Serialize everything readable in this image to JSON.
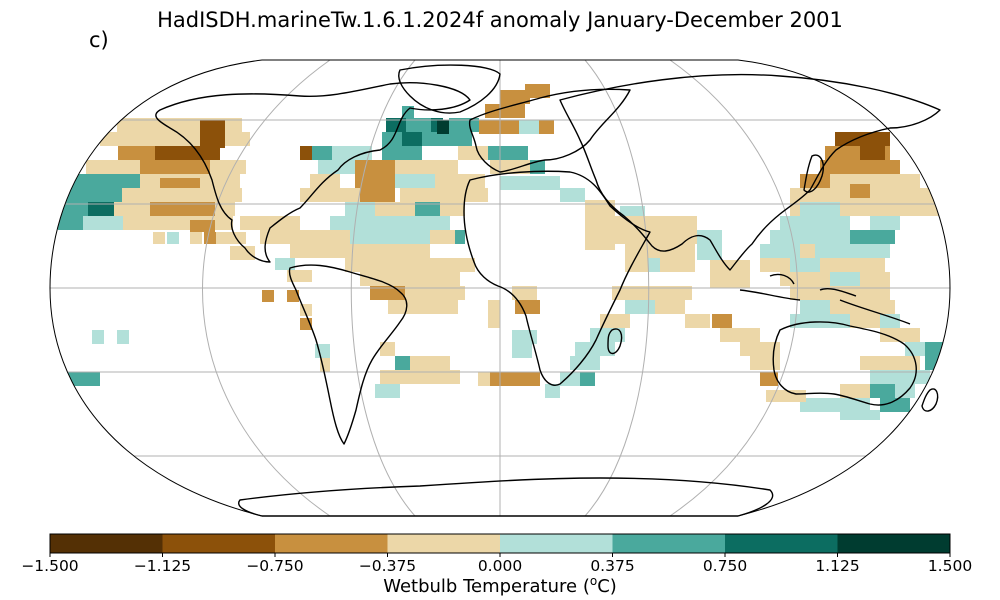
{
  "title": "HadISDH.marineTw.1.6.1.2024f anomaly January-December 2001",
  "panel_label": "c)",
  "colorbar": {
    "label_prefix": "Wetbulb Temperature (",
    "label_unit_sup": "o",
    "label_suffix": "C)",
    "ticks": [
      "−1.500",
      "−1.125",
      "−0.750",
      "−0.375",
      "0.000",
      "0.375",
      "0.750",
      "1.125",
      "1.500"
    ],
    "colors": [
      "#543005",
      "#8c510a",
      "#c8903f",
      "#ecd7a8",
      "#b2e0d9",
      "#4aa99d",
      "#0c6d61",
      "#003c30"
    ]
  },
  "map": {
    "projection": "Robinson",
    "graticule": "30° grid",
    "gridded_anomaly": "5° boxes, marine only"
  }
}
